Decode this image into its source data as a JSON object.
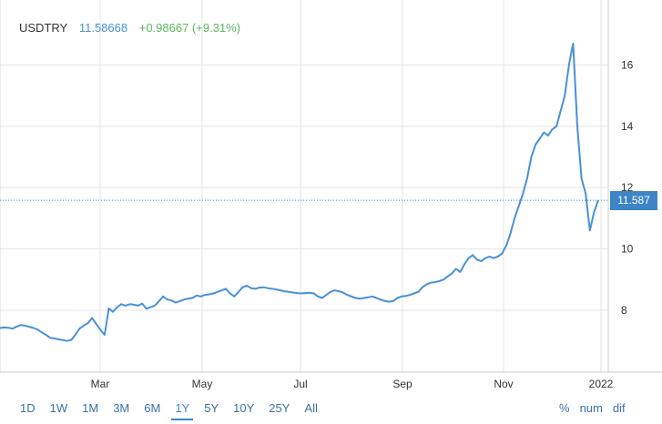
{
  "header": {
    "symbol": "USDTRY",
    "last": "11.58668",
    "change": "+0.98667 (+9.31%)"
  },
  "price_tag": "11.587",
  "colors": {
    "line": "#4a90d9",
    "accent": "#3d85c6",
    "change_positive": "#5cb85c",
    "grid": "#e6e6e6"
  },
  "range_buttons": [
    "1D",
    "1W",
    "1M",
    "3M",
    "6M",
    "1Y",
    "5Y",
    "10Y",
    "25Y",
    "All"
  ],
  "active_range": "1Y",
  "mode_buttons": [
    "%",
    "num",
    "dif"
  ],
  "chart_data": {
    "type": "line",
    "title": "",
    "xlabel": "",
    "ylabel": "",
    "grid": true,
    "ylim": [
      6.0,
      17.0
    ],
    "x_ticks": [
      "Mar",
      "May",
      "Jul",
      "Sep",
      "Nov",
      "2022"
    ],
    "y_ticks": [
      8,
      10,
      12,
      14,
      16
    ],
    "last_value": 11.587,
    "series": [
      {
        "values": [
          7.42,
          7.44,
          7.43,
          7.4,
          7.47,
          7.52,
          7.5,
          7.46,
          7.42,
          7.37,
          7.28,
          7.2,
          7.1,
          7.08,
          7.05,
          7.03,
          7.0,
          7.03,
          7.2,
          7.4,
          7.5,
          7.58,
          7.75,
          7.55,
          7.36,
          7.2,
          8.06,
          7.95,
          8.1,
          8.2,
          8.15,
          8.2,
          8.18,
          8.15,
          8.22,
          8.05,
          8.1,
          8.15,
          8.3,
          8.45,
          8.35,
          8.32,
          8.25,
          8.3,
          8.35,
          8.38,
          8.4,
          8.48,
          8.45,
          8.5,
          8.52,
          8.55,
          8.6,
          8.65,
          8.7,
          8.55,
          8.45,
          8.6,
          8.75,
          8.8,
          8.72,
          8.7,
          8.74,
          8.75,
          8.72,
          8.7,
          8.68,
          8.65,
          8.62,
          8.6,
          8.58,
          8.56,
          8.55,
          8.56,
          8.57,
          8.55,
          8.45,
          8.4,
          8.5,
          8.6,
          8.65,
          8.62,
          8.58,
          8.5,
          8.45,
          8.4,
          8.38,
          8.4,
          8.42,
          8.45,
          8.4,
          8.35,
          8.3,
          8.28,
          8.3,
          8.4,
          8.45,
          8.47,
          8.5,
          8.55,
          8.6,
          8.75,
          8.85,
          8.9,
          8.92,
          8.95,
          9.0,
          9.1,
          9.2,
          9.35,
          9.25,
          9.5,
          9.7,
          9.8,
          9.65,
          9.6,
          9.7,
          9.75,
          9.7,
          9.75,
          9.85,
          10.1,
          10.5,
          11.0,
          11.4,
          11.8,
          12.3,
          13.0,
          13.4,
          13.6,
          13.8,
          13.7,
          13.9,
          14.0,
          14.5,
          15.0,
          16.0,
          16.7,
          14.0,
          12.3,
          11.8,
          10.6,
          11.2,
          11.587
        ]
      }
    ]
  }
}
